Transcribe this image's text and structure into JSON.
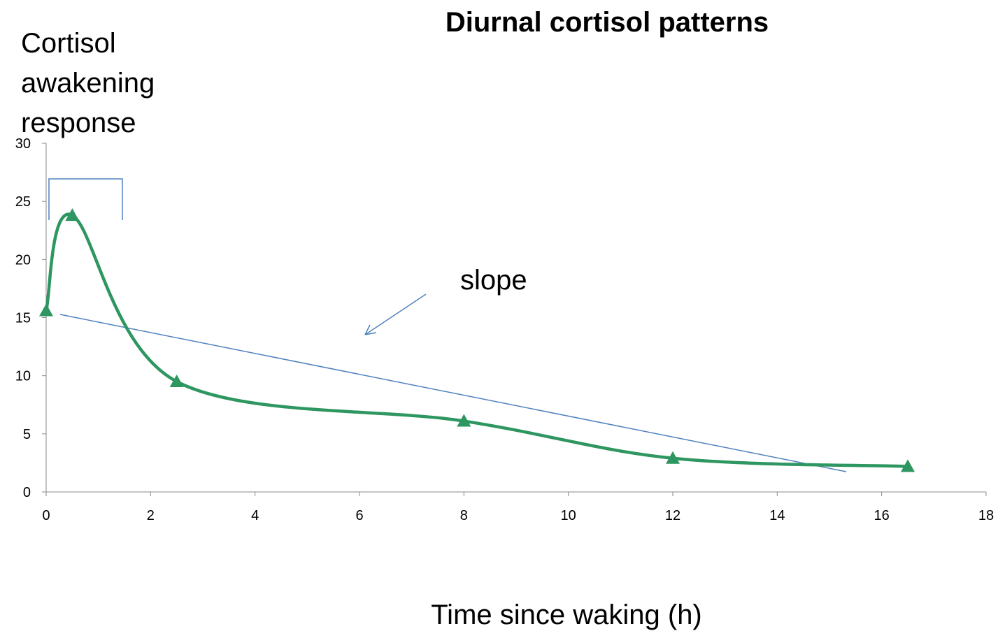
{
  "chart_data": {
    "type": "line",
    "title": "Diurnal cortisol patterns",
    "xlabel": "Time since waking (h)",
    "annotations": [
      "Cortisol awakening response",
      "slope"
    ],
    "x": [
      0,
      0.5,
      2.5,
      8,
      12,
      16.5
    ],
    "series": [
      {
        "color": "#2e9660",
        "values": [
          15.6,
          23.8,
          9.5,
          6.1,
          2.9,
          2.2
        ]
      }
    ],
    "xlim": [
      0,
      18
    ],
    "xticks": [
      0,
      2,
      4,
      6,
      8,
      10,
      12,
      14,
      16,
      18
    ],
    "ylim": [
      0,
      30
    ],
    "yticks": [
      0,
      5,
      10,
      15,
      20,
      25,
      30
    ],
    "grid": false
  }
}
